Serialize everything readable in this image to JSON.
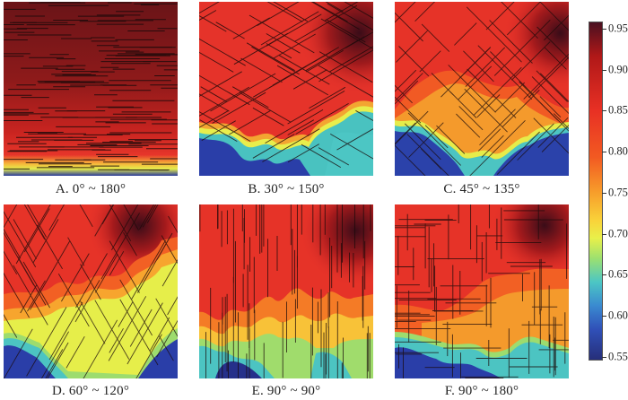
{
  "panels": [
    {
      "id": "A",
      "caption": "A. 0° ~ 180°"
    },
    {
      "id": "B",
      "caption": "B. 30° ~ 150°"
    },
    {
      "id": "C",
      "caption": "C. 45° ~ 135°"
    },
    {
      "id": "D",
      "caption": "D. 60° ~ 120°"
    },
    {
      "id": "E",
      "caption": "E. 90° ~ 90°"
    },
    {
      "id": "F",
      "caption": "F. 90° ~ 180°"
    }
  ],
  "colorbar": {
    "ticks": [
      "0.95",
      "0.90",
      "0.85",
      "0.80",
      "0.75",
      "0.70",
      "0.65",
      "0.60",
      "0.55"
    ],
    "colors": [
      "#4a1020",
      "#b01818",
      "#e83024",
      "#f25a22",
      "#f79b2a",
      "#f9d43a",
      "#e8f04a",
      "#9ce070",
      "#4cc6c4",
      "#3a8ad0",
      "#3050b8",
      "#262f7a"
    ]
  }
}
